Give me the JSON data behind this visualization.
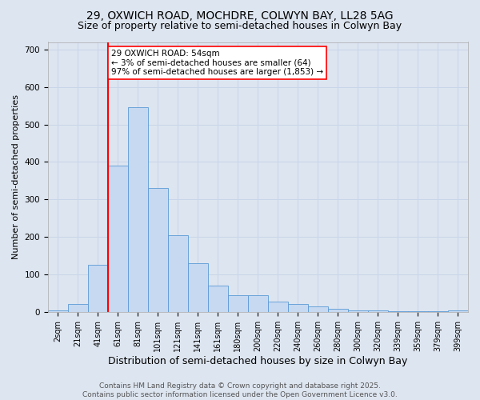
{
  "title1": "29, OXWICH ROAD, MOCHDRE, COLWYN BAY, LL28 5AG",
  "title2": "Size of property relative to semi-detached houses in Colwyn Bay",
  "xlabel": "Distribution of semi-detached houses by size in Colwyn Bay",
  "ylabel": "Number of semi-detached properties",
  "bar_labels": [
    "2sqm",
    "21sqm",
    "41sqm",
    "61sqm",
    "81sqm",
    "101sqm",
    "121sqm",
    "141sqm",
    "161sqm",
    "180sqm",
    "200sqm",
    "220sqm",
    "240sqm",
    "260sqm",
    "280sqm",
    "300sqm",
    "320sqm",
    "339sqm",
    "359sqm",
    "379sqm",
    "399sqm"
  ],
  "bar_heights": [
    5,
    20,
    125,
    390,
    545,
    330,
    205,
    130,
    70,
    45,
    45,
    28,
    22,
    14,
    8,
    5,
    3,
    2,
    1,
    1,
    5
  ],
  "bar_color": "#c6d9f1",
  "bar_edge_color": "#5b9bd5",
  "vline_color": "red",
  "vline_x_index": 2.5,
  "annotation_text": "29 OXWICH ROAD: 54sqm\n← 3% of semi-detached houses are smaller (64)\n97% of semi-detached houses are larger (1,853) →",
  "annotation_box_color": "white",
  "annotation_box_edge_color": "red",
  "ylim": [
    0,
    720
  ],
  "yticks": [
    0,
    100,
    200,
    300,
    400,
    500,
    600,
    700
  ],
  "grid_color": "#c8d4e8",
  "background_color": "#dde5f0",
  "footer_text": "Contains HM Land Registry data © Crown copyright and database right 2025.\nContains public sector information licensed under the Open Government Licence v3.0.",
  "title1_fontsize": 10,
  "title2_fontsize": 9,
  "xlabel_fontsize": 9,
  "ylabel_fontsize": 8,
  "tick_fontsize": 7,
  "footer_fontsize": 6.5,
  "annotation_fontsize": 7.5
}
